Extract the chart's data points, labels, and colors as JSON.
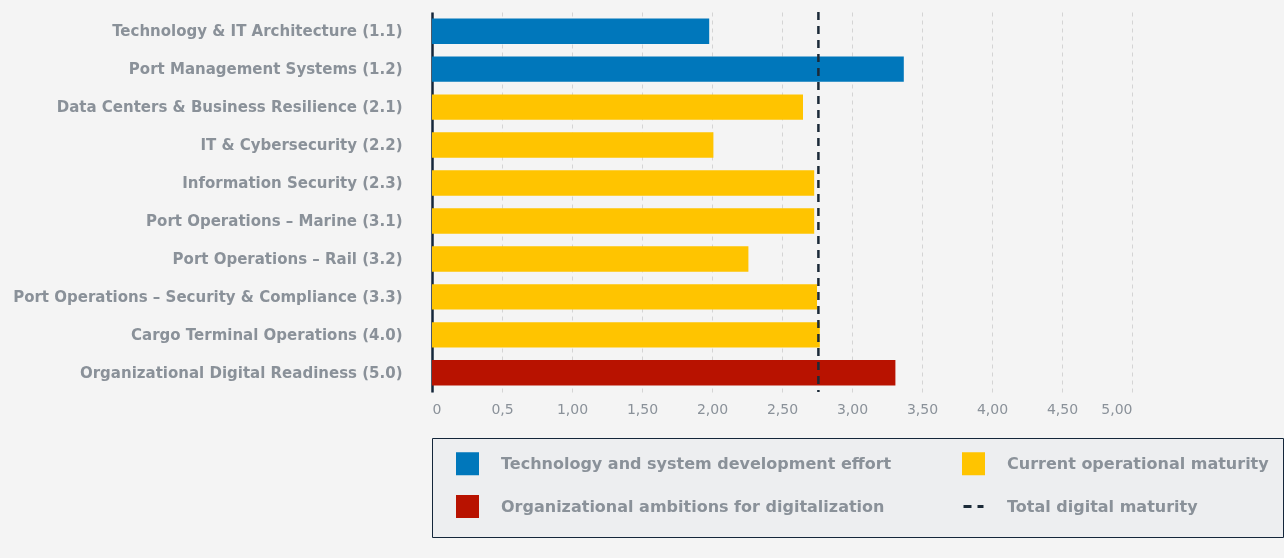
{
  "chart_data": {
    "type": "bar",
    "orientation": "horizontal",
    "categories": [
      "Technology & IT Architecture (1.1)",
      "Port Management Systems (1.2)",
      "Data Centers & Business Resilience (2.1)",
      "IT & Cybersecurity (2.2)",
      "Information Security (2.3)",
      "Port Operations – Marine (3.1)",
      "Port Operations – Rail (3.2)",
      "Port Operations – Security & Compliance (3.3)",
      "Cargo Terminal Operations (4.0)",
      "Organizational Digital Readiness (5.0)"
    ],
    "series": [
      {
        "name": "Technology and system development effort",
        "color": "#0077bb",
        "values": [
          1.98,
          3.37,
          null,
          null,
          null,
          null,
          null,
          null,
          null,
          null
        ]
      },
      {
        "name": "Current operational maturity",
        "color": "#ffc400",
        "values": [
          null,
          null,
          2.65,
          2.01,
          2.73,
          2.73,
          2.26,
          2.75,
          2.77,
          null
        ]
      },
      {
        "name": "Organizational ambitions for digitalization",
        "color": "#b81200",
        "values": [
          null,
          null,
          null,
          null,
          null,
          null,
          null,
          null,
          null,
          3.31
        ]
      }
    ],
    "ref_lines": [
      {
        "axis": "x",
        "value": 2.76,
        "label": "Total digital maturity",
        "color": "#1b2a38",
        "line_style": "dashed"
      }
    ],
    "xlim": [
      0,
      5
    ],
    "xticks": [
      0,
      {
        "value": 0.5,
        "label": "0,5"
      },
      {
        "value": 1,
        "label": "1,00"
      },
      {
        "value": 1.5,
        "label": "1,50"
      },
      {
        "value": 2,
        "label": "2,00"
      },
      {
        "value": 2.5,
        "label": "2,50"
      },
      {
        "value": 3,
        "label": "3,00"
      },
      {
        "value": 3.5,
        "label": "3,50"
      },
      {
        "value": 4,
        "label": "4,00"
      },
      {
        "value": 4.5,
        "label": "4,50"
      },
      {
        "value": 5,
        "label": "5,00"
      }
    ],
    "grid": "x",
    "legend": "bottom"
  }
}
